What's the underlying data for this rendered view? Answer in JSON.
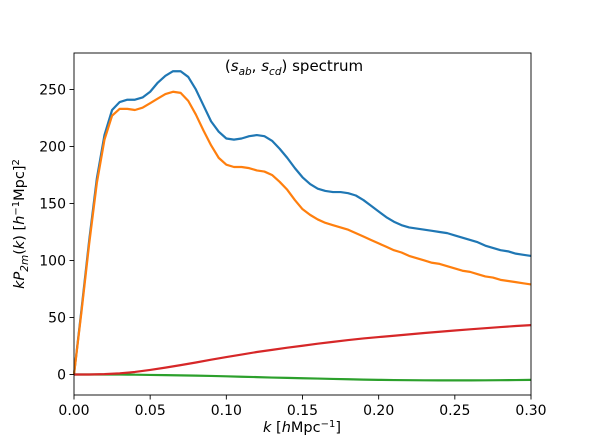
{
  "chart_data": {
    "type": "line",
    "title": "(s_ab, s_cd) spectrum",
    "xlabel": "k [hMpc⁻¹]",
    "ylabel": "kP2m(k) [h⁻¹Mpc]²",
    "xlim": [
      0.0,
      0.3
    ],
    "ylim": [
      -18,
      282
    ],
    "xticks": [
      0.0,
      0.05,
      0.1,
      0.15,
      0.2,
      0.25,
      0.3
    ],
    "xtick_labels": [
      "0.00",
      "0.05",
      "0.10",
      "0.15",
      "0.20",
      "0.25",
      "0.30"
    ],
    "yticks": [
      0,
      50,
      100,
      150,
      200,
      250
    ],
    "ytick_labels": [
      "0",
      "50",
      "100",
      "150",
      "200",
      "250"
    ],
    "grid": false,
    "series": [
      {
        "color": "#1f77b4",
        "x": [
          0.0,
          0.005,
          0.01,
          0.015,
          0.02,
          0.025,
          0.03,
          0.035,
          0.04,
          0.045,
          0.05,
          0.055,
          0.06,
          0.065,
          0.07,
          0.075,
          0.08,
          0.085,
          0.09,
          0.095,
          0.1,
          0.105,
          0.11,
          0.115,
          0.12,
          0.125,
          0.13,
          0.135,
          0.14,
          0.145,
          0.15,
          0.155,
          0.16,
          0.165,
          0.17,
          0.175,
          0.18,
          0.185,
          0.19,
          0.195,
          0.2,
          0.205,
          0.21,
          0.215,
          0.22,
          0.225,
          0.23,
          0.235,
          0.24,
          0.245,
          0.25,
          0.255,
          0.26,
          0.265,
          0.27,
          0.275,
          0.28,
          0.285,
          0.29,
          0.295,
          0.3
        ],
        "y": [
          0,
          58,
          118,
          172,
          210,
          232,
          239,
          241,
          241,
          243,
          248,
          256,
          262,
          266,
          266,
          261,
          250,
          236,
          222,
          213,
          207,
          206,
          207,
          209,
          210,
          209,
          205,
          198,
          190,
          181,
          173,
          167,
          163,
          161,
          160,
          160,
          159,
          157,
          153,
          148,
          143,
          138,
          134,
          131,
          129,
          128,
          127,
          126,
          125,
          124,
          122,
          120,
          118,
          116,
          113,
          111,
          109,
          108,
          106,
          105,
          104
        ]
      },
      {
        "color": "#ff7f0e",
        "x": [
          0.0,
          0.005,
          0.01,
          0.015,
          0.02,
          0.025,
          0.03,
          0.035,
          0.04,
          0.045,
          0.05,
          0.055,
          0.06,
          0.065,
          0.07,
          0.075,
          0.08,
          0.085,
          0.09,
          0.095,
          0.1,
          0.105,
          0.11,
          0.115,
          0.12,
          0.125,
          0.13,
          0.135,
          0.14,
          0.145,
          0.15,
          0.155,
          0.16,
          0.165,
          0.17,
          0.175,
          0.18,
          0.185,
          0.19,
          0.195,
          0.2,
          0.205,
          0.21,
          0.215,
          0.22,
          0.225,
          0.23,
          0.235,
          0.24,
          0.245,
          0.25,
          0.255,
          0.26,
          0.265,
          0.27,
          0.275,
          0.28,
          0.285,
          0.29,
          0.295,
          0.3
        ],
        "y": [
          0,
          56,
          115,
          168,
          206,
          227,
          233,
          233,
          232,
          234,
          238,
          242,
          246,
          248,
          247,
          240,
          228,
          214,
          201,
          190,
          184,
          182,
          182,
          181,
          179,
          178,
          175,
          169,
          162,
          153,
          145,
          140,
          136,
          133,
          131,
          129,
          127,
          124,
          121,
          118,
          115,
          112,
          109,
          107,
          104,
          102,
          100,
          98,
          97,
          95,
          93,
          91,
          90,
          88,
          86,
          85,
          83,
          82,
          81,
          80,
          79
        ]
      },
      {
        "color": "#2ca02c",
        "x": [
          0.0,
          0.01,
          0.02,
          0.03,
          0.04,
          0.05,
          0.06,
          0.07,
          0.08,
          0.09,
          0.1,
          0.11,
          0.12,
          0.13,
          0.14,
          0.15,
          0.16,
          0.17,
          0.18,
          0.19,
          0.2,
          0.21,
          0.22,
          0.23,
          0.24,
          0.25,
          0.26,
          0.27,
          0.28,
          0.29,
          0.3
        ],
        "y": [
          0,
          0,
          0,
          0,
          -0.2,
          -0.4,
          -0.6,
          -0.8,
          -1.0,
          -1.3,
          -1.6,
          -2.0,
          -2.3,
          -2.7,
          -3.0,
          -3.3,
          -3.6,
          -3.9,
          -4.2,
          -4.5,
          -4.7,
          -4.9,
          -5.0,
          -5.1,
          -5.2,
          -5.2,
          -5.2,
          -5.1,
          -5.0,
          -4.9,
          -4.7
        ]
      },
      {
        "color": "#d62728",
        "x": [
          0.0,
          0.01,
          0.02,
          0.03,
          0.04,
          0.05,
          0.06,
          0.07,
          0.08,
          0.09,
          0.1,
          0.11,
          0.12,
          0.13,
          0.14,
          0.15,
          0.16,
          0.17,
          0.18,
          0.19,
          0.2,
          0.21,
          0.22,
          0.23,
          0.24,
          0.25,
          0.26,
          0.27,
          0.28,
          0.29,
          0.3
        ],
        "y": [
          0,
          0,
          0.3,
          1.0,
          2.2,
          4.0,
          6.0,
          8.2,
          10.5,
          13.0,
          15.3,
          17.5,
          19.7,
          21.6,
          23.5,
          25.2,
          27.0,
          28.6,
          30.2,
          31.6,
          32.8,
          34.0,
          35.2,
          36.4,
          37.5,
          38.6,
          39.6,
          40.6,
          41.6,
          42.5,
          43.3
        ]
      }
    ]
  }
}
